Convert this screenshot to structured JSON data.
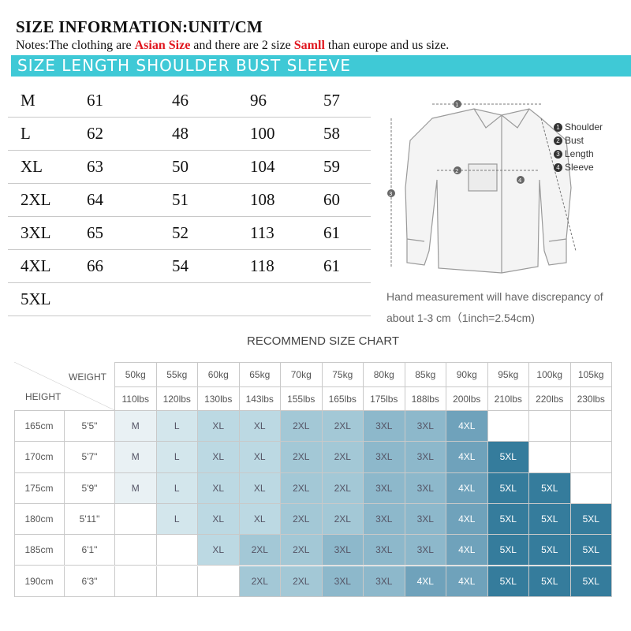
{
  "header": {
    "title": "SIZE INFORMATION:UNIT/CM",
    "notes_prefix": "Notes:The clothing are ",
    "notes_asian": "Asian Size",
    "notes_middle": " and there are 2 size ",
    "notes_small": "Samll",
    "notes_suffix": " than europe and us size.",
    "bar_text": "SIZE LENGTH  SHOULDER  BUST   SLEEVE"
  },
  "size_table": [
    [
      "M",
      "61",
      "46",
      "96",
      "57"
    ],
    [
      "L",
      "62",
      "48",
      "100",
      "58"
    ],
    [
      "XL",
      "63",
      "50",
      "104",
      "59"
    ],
    [
      "2XL",
      "64",
      "51",
      "108",
      "60"
    ],
    [
      "3XL",
      "65",
      "52",
      "113",
      "61"
    ],
    [
      "4XL",
      "66",
      "54",
      "118",
      "61"
    ],
    [
      "5XL",
      "",
      "",
      "",
      ""
    ]
  ],
  "shirt_legend": [
    {
      "num": "1",
      "label": "Shoulder"
    },
    {
      "num": "2",
      "label": "Bust"
    },
    {
      "num": "3",
      "label": "Length"
    },
    {
      "num": "4",
      "label": "Sleeve"
    }
  ],
  "disclaimer_line1": "Hand measurement will have discrepancy of",
  "disclaimer_line2": "about 1-3 cm（1inch=2.54cm)",
  "recommend": {
    "title": "RECOMMEND SIZE CHART",
    "weight_label": "WEIGHT",
    "height_label": "HEIGHT",
    "kg": [
      "50kg",
      "55kg",
      "60kg",
      "65kg",
      "70kg",
      "75kg",
      "80kg",
      "85kg",
      "90kg",
      "95kg",
      "100kg",
      "105kg"
    ],
    "lbs": [
      "110lbs",
      "120lbs",
      "130lbs",
      "143lbs",
      "155lbs",
      "165lbs",
      "175lbs",
      "188lbs",
      "200lbs",
      "210lbs",
      "220lbs",
      "230lbs"
    ],
    "rows": [
      {
        "cm": "165cm",
        "ft": "5'5\"",
        "sizes": [
          "M",
          "L",
          "XL",
          "XL",
          "2XL",
          "2XL",
          "3XL",
          "3XL",
          "4XL",
          "",
          "",
          ""
        ]
      },
      {
        "cm": "170cm",
        "ft": "5'7\"",
        "sizes": [
          "M",
          "L",
          "XL",
          "XL",
          "2XL",
          "2XL",
          "3XL",
          "3XL",
          "4XL",
          "5XL",
          "",
          ""
        ]
      },
      {
        "cm": "175cm",
        "ft": "5'9\"",
        "sizes": [
          "M",
          "L",
          "XL",
          "XL",
          "2XL",
          "2XL",
          "3XL",
          "3XL",
          "4XL",
          "5XL",
          "5XL",
          ""
        ]
      },
      {
        "cm": "180cm",
        "ft": "5'11\"",
        "sizes": [
          "",
          "L",
          "XL",
          "XL",
          "2XL",
          "2XL",
          "3XL",
          "3XL",
          "4XL",
          "5XL",
          "5XL",
          "5XL"
        ]
      },
      {
        "cm": "185cm",
        "ft": "6'1\"",
        "sizes": [
          "",
          "",
          "XL",
          "2XL",
          "2XL",
          "3XL",
          "3XL",
          "3XL",
          "4XL",
          "5XL",
          "5XL",
          "5XL"
        ]
      },
      {
        "cm": "190cm",
        "ft": "6'3\"",
        "sizes": [
          "",
          "",
          "",
          "2XL",
          "2XL",
          "3XL",
          "3XL",
          "4XL",
          "4XL",
          "5XL",
          "5XL",
          "5XL"
        ]
      }
    ],
    "size_colors": {
      "M": "#e9f1f4",
      "L": "#d3e6ec",
      "XL": "#bcd9e3",
      "2XL": "#a3c8d6",
      "3XL": "#8db8cb",
      "4XL": "#6fa2bb",
      "5XL": "#357c9c"
    }
  }
}
